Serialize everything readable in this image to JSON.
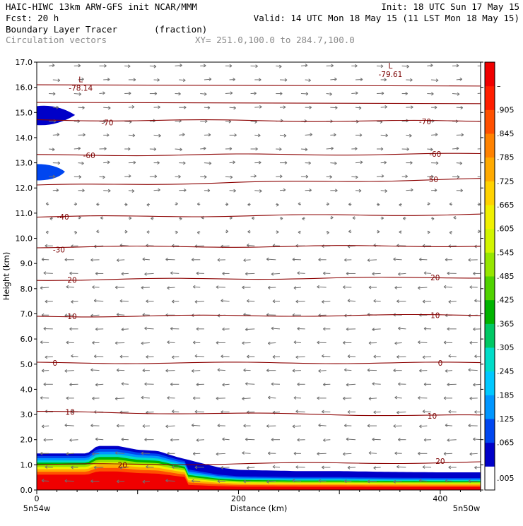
{
  "header": {
    "line1_left": "HAIC-HIWC 13km ARW-GFS init   NCAR/MMM",
    "line1_right": "Init: 18 UTC Sun 17 May 15",
    "line2_left": "Fcst:   20 h",
    "line2_right": "Valid: 14 UTC Mon 18 May 15 (11 LST Mon 18 May 15)",
    "line3_field": "Boundary Layer Tracer",
    "line3_units": "(fraction)",
    "line4_field": "Circulation vectors",
    "line4_xy": "XY= 251.0,100.0 to 284.7,100.0"
  },
  "chart_data": {
    "type": "heatmap",
    "subtype": "vertical cross-section with contours and vectors",
    "xlabel": "Distance (km)",
    "ylabel": "Height (km)",
    "xlim": [
      0,
      440
    ],
    "ylim": [
      0,
      17
    ],
    "x_ticks": [
      0,
      200,
      400
    ],
    "y_ticks": [
      "0.0",
      "1.0",
      "2.0",
      "3.0",
      "4.0",
      "5.0",
      "6.0",
      "7.0",
      "8.0",
      "9.0",
      "10.0",
      "11.0",
      "12.0",
      "13.0",
      "14.0",
      "15.0",
      "16.0",
      "17.0"
    ],
    "x_end_labels": {
      "left": "5n54w",
      "right": "5n50w"
    },
    "colorbar": {
      "labels": [
        ".005",
        ".065",
        ".125",
        ".185",
        ".245",
        ".305",
        ".365",
        ".425",
        ".485",
        ".545",
        ".605",
        ".665",
        ".725",
        ".785",
        ".845",
        ".905",
        "–"
      ],
      "colors": [
        "#ffffff",
        "#0000c8",
        "#0046f0",
        "#0096ff",
        "#00c8ff",
        "#00dcc8",
        "#00c864",
        "#00b400",
        "#50d200",
        "#96e600",
        "#d2f500",
        "#f0f000",
        "#ffd200",
        "#ffaa00",
        "#ff8200",
        "#ff5000",
        "#ff1e00",
        "#f00000"
      ]
    },
    "temperature_contours": {
      "color": "#8b0000",
      "levels": [
        20,
        10,
        0,
        -10,
        -20,
        -30,
        -40,
        -50,
        -60,
        -70
      ],
      "heights_left_km": [
        1.0,
        3.1,
        5.05,
        6.9,
        8.35,
        9.65,
        10.85,
        12.1,
        13.3,
        14.7
      ],
      "heights_right_km": [
        1.1,
        2.95,
        5.05,
        6.95,
        8.45,
        9.7,
        10.95,
        12.35,
        13.35,
        14.65
      ],
      "labels": [
        {
          "text": "20",
          "x": 85,
          "y": 1.0
        },
        {
          "text": "20",
          "x": 400,
          "y": 1.15
        },
        {
          "text": "10",
          "x": 33,
          "y": 3.1
        },
        {
          "text": "10",
          "x": 392,
          "y": 2.95
        },
        {
          "text": "0",
          "x": 18,
          "y": 5.05
        },
        {
          "text": "0",
          "x": 400,
          "y": 5.05
        },
        {
          "text": "10",
          "x": 35,
          "y": 6.9
        },
        {
          "text": "10",
          "x": 395,
          "y": 6.95
        },
        {
          "text": "20",
          "x": 35,
          "y": 8.35
        },
        {
          "text": "20",
          "x": 395,
          "y": 8.45
        },
        {
          "text": "-30",
          "x": 22,
          "y": 9.55
        },
        {
          "text": "-40",
          "x": 26,
          "y": 10.85
        },
        {
          "text": "-50",
          "x": 392,
          "y": 12.35
        },
        {
          "text": "-60",
          "x": 52,
          "y": 13.3
        },
        {
          "text": "-60",
          "x": 395,
          "y": 13.35
        },
        {
          "text": "-70",
          "x": 70,
          "y": 14.6
        },
        {
          "text": "-70",
          "x": 385,
          "y": 14.65
        }
      ]
    },
    "extrema": [
      {
        "symbol": "L",
        "value": "-78.14",
        "x": 38,
        "y": 16.2
      },
      {
        "symbol": "L",
        "value": "-79.61",
        "x": 345,
        "y": 16.75
      }
    ],
    "boundary_layer_top_km": {
      "x": [
        0,
        30,
        50,
        60,
        80,
        100,
        120,
        140,
        160,
        180,
        200,
        260,
        300,
        350,
        400,
        440
      ],
      "y": [
        1.45,
        1.45,
        1.45,
        1.75,
        1.75,
        1.6,
        1.55,
        1.3,
        1.1,
        0.9,
        0.8,
        0.75,
        0.75,
        0.72,
        0.7,
        0.7
      ]
    }
  }
}
